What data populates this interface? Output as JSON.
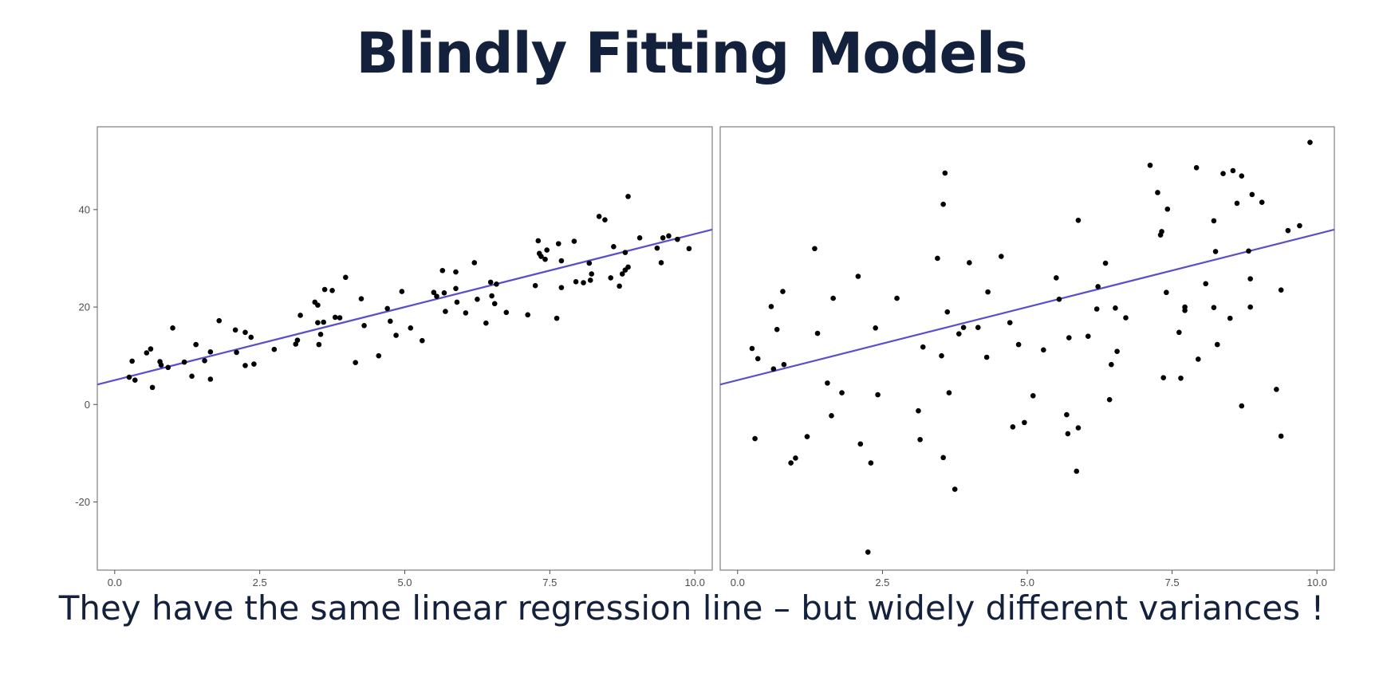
{
  "slide": {
    "title": "Blindly Fitting Models",
    "caption": "They have the same linear regression line – but widely different variances !"
  },
  "colors": {
    "title_text": "#14213d",
    "points": "#000000",
    "regression_line": "#5b4fc8",
    "panel_border": "#7f7f7f"
  },
  "chart_data": [
    {
      "type": "scatter",
      "title": "",
      "xlabel": "",
      "ylabel": "",
      "xlim": [
        -0.3,
        10.3
      ],
      "ylim": [
        -34,
        57
      ],
      "x_ticks": [
        0,
        2.5,
        5,
        7.5,
        10
      ],
      "x_tick_labels": [
        "0.0",
        "2.5",
        "5.0",
        "7.5",
        "10.0"
      ],
      "y_ticks": [
        -20,
        0,
        20,
        40
      ],
      "y_tick_labels": [
        "-20",
        "0",
        "20",
        "40"
      ],
      "grid": false,
      "regression_line": {
        "intercept": 5,
        "slope": 3
      },
      "series": [
        {
          "points": [
            [
              0.25,
              5.6
            ],
            [
              0.3,
              8.9
            ],
            [
              0.35,
              5.0
            ],
            [
              0.55,
              10.6
            ],
            [
              0.62,
              11.4
            ],
            [
              0.65,
              3.5
            ],
            [
              0.78,
              8.8
            ],
            [
              0.8,
              8.1
            ],
            [
              0.92,
              7.6
            ],
            [
              1.0,
              15.7
            ],
            [
              1.2,
              8.7
            ],
            [
              1.33,
              5.8
            ],
            [
              1.4,
              12.3
            ],
            [
              1.55,
              9.0
            ],
            [
              1.65,
              10.8
            ],
            [
              1.65,
              5.2
            ],
            [
              1.8,
              17.2
            ],
            [
              2.08,
              15.3
            ],
            [
              2.1,
              10.7
            ],
            [
              2.25,
              8.0
            ],
            [
              2.25,
              14.8
            ],
            [
              2.35,
              13.8
            ],
            [
              2.4,
              8.3
            ],
            [
              2.75,
              11.3
            ],
            [
              3.12,
              12.4
            ],
            [
              3.15,
              13.2
            ],
            [
              3.2,
              18.3
            ],
            [
              3.45,
              21.0
            ],
            [
              3.5,
              20.4
            ],
            [
              3.5,
              16.8
            ],
            [
              3.52,
              12.3
            ],
            [
              3.55,
              14.4
            ],
            [
              3.62,
              23.6
            ],
            [
              3.6,
              16.9
            ],
            [
              3.75,
              23.4
            ],
            [
              3.8,
              17.9
            ],
            [
              3.88,
              17.8
            ],
            [
              3.98,
              26.1
            ],
            [
              4.15,
              8.6
            ],
            [
              4.25,
              21.7
            ],
            [
              4.3,
              16.2
            ],
            [
              4.55,
              10.0
            ],
            [
              4.7,
              19.7
            ],
            [
              4.75,
              17.1
            ],
            [
              4.85,
              14.2
            ],
            [
              4.95,
              23.2
            ],
            [
              5.1,
              15.7
            ],
            [
              5.3,
              13.1
            ],
            [
              5.5,
              23.0
            ],
            [
              5.55,
              22.2
            ],
            [
              5.65,
              27.5
            ],
            [
              5.68,
              22.9
            ],
            [
              5.7,
              19.1
            ],
            [
              5.88,
              27.2
            ],
            [
              5.9,
              21.0
            ],
            [
              5.88,
              23.8
            ],
            [
              6.05,
              18.8
            ],
            [
              6.2,
              29.1
            ],
            [
              6.25,
              21.6
            ],
            [
              6.4,
              16.7
            ],
            [
              6.48,
              25.1
            ],
            [
              6.5,
              22.3
            ],
            [
              6.58,
              24.7
            ],
            [
              6.55,
              20.7
            ],
            [
              6.75,
              18.9
            ],
            [
              7.12,
              18.4
            ],
            [
              7.25,
              24.4
            ],
            [
              7.3,
              33.6
            ],
            [
              7.32,
              31.0
            ],
            [
              7.35,
              30.4
            ],
            [
              7.42,
              29.8
            ],
            [
              7.45,
              31.7
            ],
            [
              7.62,
              17.7
            ],
            [
              7.65,
              33.0
            ],
            [
              7.7,
              24.0
            ],
            [
              7.7,
              29.5
            ],
            [
              7.92,
              33.5
            ],
            [
              7.95,
              25.2
            ],
            [
              8.08,
              25.0
            ],
            [
              8.18,
              29.0
            ],
            [
              8.2,
              25.5
            ],
            [
              8.22,
              26.8
            ],
            [
              8.35,
              38.6
            ],
            [
              8.45,
              37.9
            ],
            [
              8.55,
              26.0
            ],
            [
              8.6,
              32.4
            ],
            [
              8.7,
              24.3
            ],
            [
              8.75,
              26.8
            ],
            [
              8.8,
              27.6
            ],
            [
              8.8,
              31.2
            ],
            [
              8.85,
              42.7
            ],
            [
              8.85,
              28.2
            ],
            [
              9.05,
              34.2
            ],
            [
              9.35,
              32.1
            ],
            [
              9.42,
              29.1
            ],
            [
              9.45,
              34.2
            ],
            [
              9.55,
              34.6
            ],
            [
              9.7,
              33.9
            ],
            [
              9.9,
              32.0
            ]
          ]
        }
      ]
    },
    {
      "type": "scatter",
      "title": "",
      "xlabel": "",
      "ylabel": "",
      "xlim": [
        -0.3,
        10.3
      ],
      "ylim": [
        -34,
        57
      ],
      "x_ticks": [
        0,
        2.5,
        5,
        7.5,
        10
      ],
      "x_tick_labels": [
        "0.0",
        "2.5",
        "5.0",
        "7.5",
        "10.0"
      ],
      "grid": false,
      "regression_line": {
        "intercept": 5,
        "slope": 3
      },
      "series": [
        {
          "points": [
            [
              0.25,
              11.5
            ],
            [
              0.3,
              -7.0
            ],
            [
              0.35,
              9.4
            ],
            [
              0.58,
              20.1
            ],
            [
              0.62,
              7.3
            ],
            [
              0.68,
              15.4
            ],
            [
              0.78,
              23.2
            ],
            [
              0.8,
              8.2
            ],
            [
              0.92,
              -12.0
            ],
            [
              1.0,
              -11.0
            ],
            [
              1.2,
              -6.6
            ],
            [
              1.33,
              32.0
            ],
            [
              1.38,
              14.6
            ],
            [
              1.55,
              4.4
            ],
            [
              1.62,
              -2.3
            ],
            [
              1.65,
              21.8
            ],
            [
              1.8,
              2.4
            ],
            [
              2.08,
              26.3
            ],
            [
              2.12,
              -8.1
            ],
            [
              2.25,
              -30.3
            ],
            [
              2.3,
              -12.0
            ],
            [
              2.38,
              15.7
            ],
            [
              2.42,
              2.0
            ],
            [
              2.75,
              21.8
            ],
            [
              3.12,
              -1.3
            ],
            [
              3.15,
              -7.2
            ],
            [
              3.2,
              11.8
            ],
            [
              3.45,
              30.0
            ],
            [
              3.52,
              10.0
            ],
            [
              3.55,
              -10.9
            ],
            [
              3.55,
              41.1
            ],
            [
              3.58,
              47.5
            ],
            [
              3.62,
              19.0
            ],
            [
              3.65,
              2.4
            ],
            [
              3.75,
              -17.4
            ],
            [
              3.82,
              14.5
            ],
            [
              3.9,
              15.8
            ],
            [
              4.0,
              29.1
            ],
            [
              4.15,
              15.8
            ],
            [
              4.3,
              9.7
            ],
            [
              4.32,
              23.1
            ],
            [
              4.55,
              30.4
            ],
            [
              4.7,
              16.8
            ],
            [
              4.75,
              -4.6
            ],
            [
              4.85,
              12.3
            ],
            [
              4.95,
              -3.7
            ],
            [
              5.1,
              1.8
            ],
            [
              5.28,
              11.2
            ],
            [
              5.5,
              26.0
            ],
            [
              5.55,
              21.6
            ],
            [
              5.68,
              -2.1
            ],
            [
              5.7,
              -6.0
            ],
            [
              5.72,
              13.7
            ],
            [
              5.85,
              -13.7
            ],
            [
              5.88,
              37.8
            ],
            [
              5.88,
              -4.8
            ],
            [
              6.05,
              14.0
            ],
            [
              6.2,
              19.6
            ],
            [
              6.22,
              24.2
            ],
            [
              6.35,
              29.0
            ],
            [
              6.42,
              1.0
            ],
            [
              6.45,
              8.2
            ],
            [
              6.52,
              19.8
            ],
            [
              6.55,
              10.9
            ],
            [
              6.7,
              17.8
            ],
            [
              7.12,
              49.1
            ],
            [
              7.25,
              43.5
            ],
            [
              7.3,
              34.8
            ],
            [
              7.32,
              35.5
            ],
            [
              7.35,
              5.5
            ],
            [
              7.4,
              23.0
            ],
            [
              7.42,
              40.1
            ],
            [
              7.62,
              14.8
            ],
            [
              7.65,
              5.4
            ],
            [
              7.72,
              20.0
            ],
            [
              7.72,
              19.3
            ],
            [
              7.92,
              48.6
            ],
            [
              7.95,
              9.3
            ],
            [
              8.08,
              24.8
            ],
            [
              8.22,
              37.7
            ],
            [
              8.22,
              19.9
            ],
            [
              8.25,
              31.4
            ],
            [
              8.28,
              12.3
            ],
            [
              8.38,
              47.4
            ],
            [
              8.5,
              17.7
            ],
            [
              8.55,
              48.0
            ],
            [
              8.62,
              41.3
            ],
            [
              8.7,
              46.9
            ],
            [
              8.7,
              -0.3
            ],
            [
              8.82,
              31.5
            ],
            [
              8.85,
              20.0
            ],
            [
              8.85,
              25.8
            ],
            [
              8.88,
              43.1
            ],
            [
              9.05,
              41.5
            ],
            [
              9.3,
              3.1
            ],
            [
              9.38,
              23.5
            ],
            [
              9.38,
              -6.5
            ],
            [
              9.5,
              35.7
            ],
            [
              9.7,
              36.7
            ],
            [
              9.88,
              53.8
            ]
          ]
        }
      ]
    }
  ]
}
